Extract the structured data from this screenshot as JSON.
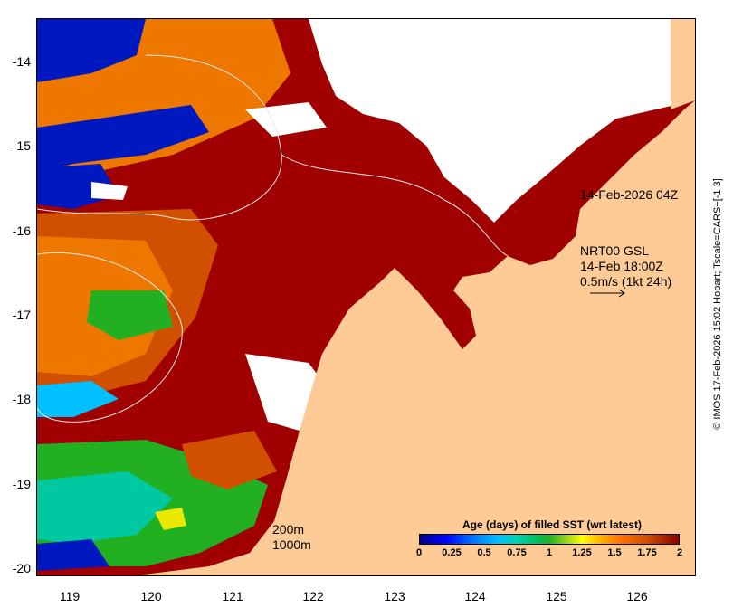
{
  "map": {
    "y_ticks": [
      "-14",
      "-15",
      "-16",
      "-17",
      "-18",
      "-19",
      "-20"
    ],
    "x_ticks": [
      "119",
      "120",
      "121",
      "122",
      "123",
      "124",
      "125",
      "126"
    ],
    "lat_range": [
      -20.05,
      -13.45
    ],
    "lon_range": [
      118.7,
      126.8
    ]
  },
  "annotations": {
    "timestamp": "14-Feb-2026 04Z",
    "current_source": "NRT00 GSL",
    "current_time": "14-Feb 18:00Z",
    "current_scale": "0.5m/s (1kt 24h)",
    "contour_200": "200m",
    "contour_1000": "1000m"
  },
  "colorbar": {
    "title": "Age (days) of filled SST (wrt latest)",
    "labels": [
      "0",
      "0.25",
      "0.5",
      "0.75",
      "1",
      "1.25",
      "1.5",
      "1.75",
      "2"
    ]
  },
  "credit": "© IMOS 17-Feb-2026 15:02 Hobart; Tscale=CARS+[-1 3]",
  "colors": {
    "land": "#fecb97",
    "age_2": "#a00000",
    "age_1_75": "#d05000",
    "age_1_5": "#ee7700",
    "age_1": "#22b022",
    "age_0": "#0018c0",
    "no_data": "#ffffff"
  }
}
